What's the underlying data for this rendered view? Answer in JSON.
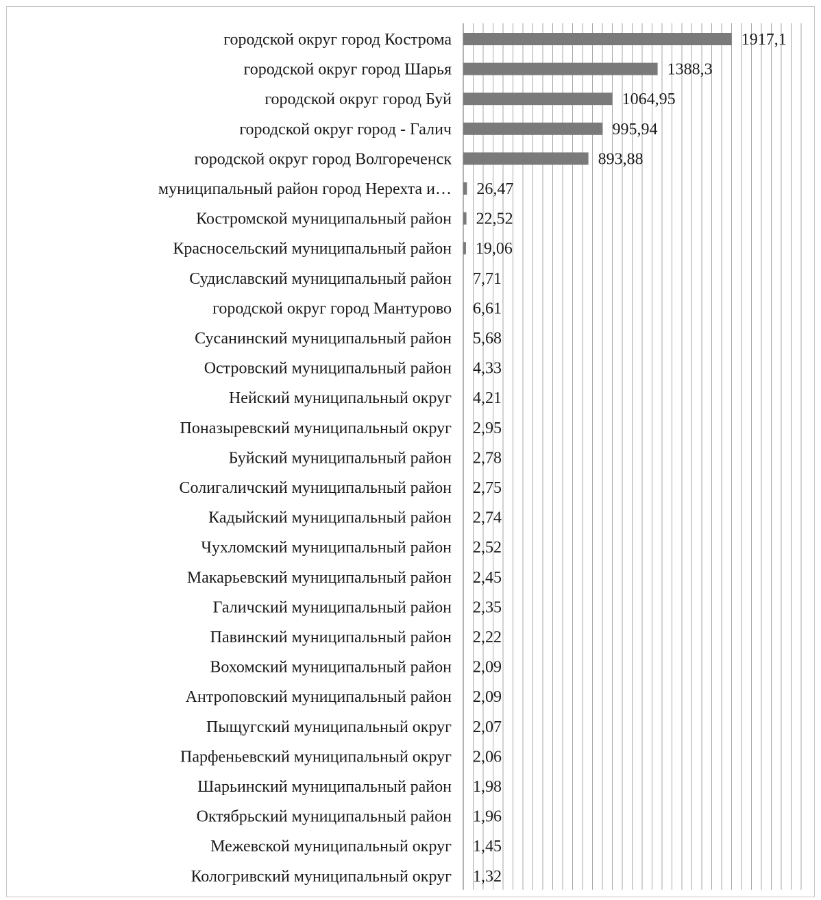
{
  "chart_data": {
    "type": "bar",
    "orientation": "horizontal",
    "title": "",
    "xlabel": "",
    "ylabel": "",
    "xlim": [
      0,
      2000
    ],
    "grid": true,
    "legend": "none",
    "bar_color": "#7a7a7a",
    "categories": [
      "городской округ город Кострома",
      "городской округ город Шарья",
      "городской округ город Буй",
      "городской округ город - Галич",
      "городской округ город Волгореченск",
      "муниципальный район город Нерехта и…",
      "Костромской муниципальный район",
      "Красносельский муниципальный район",
      "Судиславский муниципальный район",
      "городской округ город Мантурово",
      "Сусанинский муниципальный район",
      "Островский муниципальный район",
      "Нейский муниципальный округ",
      "Поназыревский муниципальный округ",
      "Буйский муниципальный район",
      "Солигаличский муниципальный район",
      "Кадыйский муниципальный район",
      "Чухломский муниципальный район",
      "Макарьевский муниципальный район",
      "Галичский муниципальный район",
      "Павинский муниципальный район",
      "Вохомский муниципальный район",
      "Антроповский муниципальный район",
      "Пыщугский муниципальный округ",
      "Парфеньевский муниципальный округ",
      "Шарьинский муниципальный район",
      "Октябрьский муниципальный район",
      "Межевской муниципальный округ",
      "Кологривский муниципальный округ"
    ],
    "values": [
      1917.1,
      1388.3,
      1064.95,
      995.94,
      893.88,
      26.47,
      22.52,
      19.06,
      7.71,
      6.61,
      5.68,
      4.33,
      4.21,
      2.95,
      2.78,
      2.75,
      2.74,
      2.52,
      2.45,
      2.35,
      2.22,
      2.09,
      2.09,
      2.07,
      2.06,
      1.98,
      1.96,
      1.45,
      1.32
    ],
    "value_labels": [
      "1917,1",
      "1388,3",
      "1064,95",
      "995,94",
      "893,88",
      "26,47",
      "22,52",
      "19,06",
      "7,71",
      "6,61",
      "5,68",
      "4,33",
      "4,21",
      "2,95",
      "2,78",
      "2,75",
      "2,74",
      "2,52",
      "2,45",
      "2,35",
      "2,22",
      "2,09",
      "2,09",
      "2,07",
      "2,06",
      "1,98",
      "1,96",
      "1,45",
      "1,32"
    ]
  }
}
